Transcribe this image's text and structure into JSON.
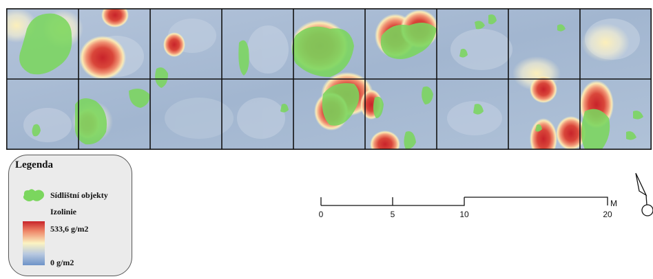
{
  "legend": {
    "title": "Legenda",
    "settlement_label": "Sídlištní objekty",
    "isoline_label": "Izolinie",
    "max_label": "533,6 g/m2",
    "min_label": "0 g/m2",
    "colors": {
      "settlement": "#7bd65e",
      "ramp_high": "#c8232a",
      "ramp_mid": "#fbf3c2",
      "ramp_low": "#6e93c8"
    }
  },
  "map": {
    "grid_rows": 2,
    "grid_cols": 9,
    "background_color": "#a9bcd4"
  },
  "scalebar": {
    "ticks": [
      "0",
      "5",
      "10",
      "20"
    ],
    "unit": "M"
  }
}
